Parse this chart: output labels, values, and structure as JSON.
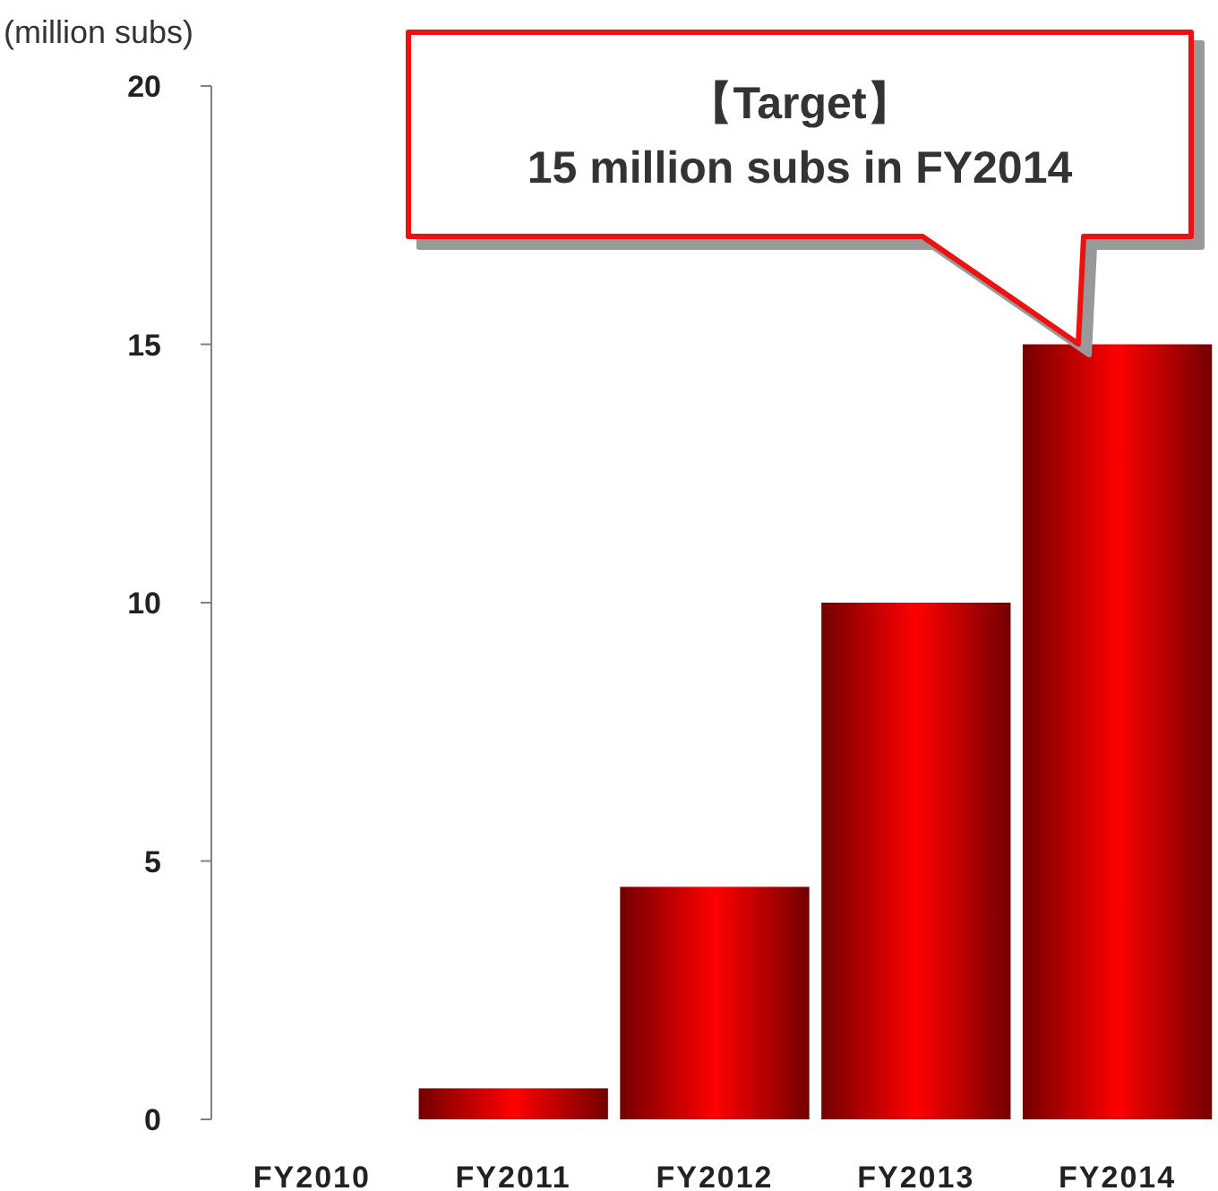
{
  "chart_data": {
    "type": "bar",
    "ylabel": "(million subs)",
    "categories": [
      "FY2010",
      "FY2011",
      "FY2012",
      "FY2013",
      "FY2014"
    ],
    "values": [
      0,
      0.6,
      4.5,
      10,
      15
    ],
    "color": "#ff0000",
    "ylim": [
      0,
      20
    ],
    "yticks": [
      0,
      5,
      10,
      15,
      20
    ],
    "grid": false,
    "annotations": [
      "【Target】\n15 million subs in FY2014"
    ]
  }
}
